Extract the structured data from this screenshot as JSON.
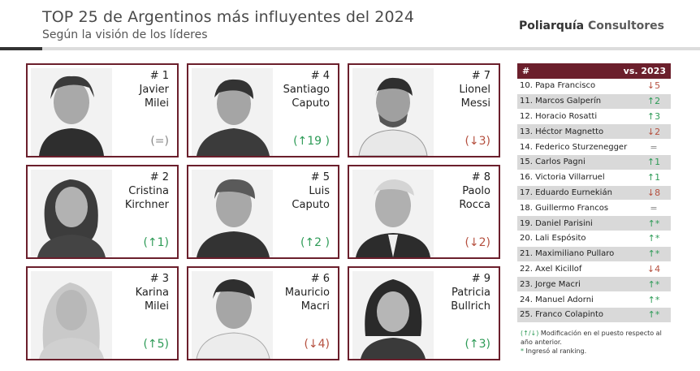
{
  "header": {
    "title": "TOP 25 de Argentinos más influyentes del 2024",
    "subtitle": "Según la visión de los líderes",
    "brand_main": "Poliarquía",
    "brand_sub": "Consultores"
  },
  "cards": [
    {
      "rank": "# 1",
      "first": "Javier",
      "last": "Milei",
      "change": "(=)",
      "trend": "eq"
    },
    {
      "rank": "# 4",
      "first": "Santiago",
      "last": "Caputo",
      "change": "(↑19 )",
      "trend": "up"
    },
    {
      "rank": "# 7",
      "first": "Lionel",
      "last": "Messi",
      "change": "(↓3)",
      "trend": "down"
    },
    {
      "rank": "# 2",
      "first": "Cristina",
      "last": "Kirchner",
      "change": "(↑1)",
      "trend": "up"
    },
    {
      "rank": "# 5",
      "first": "Luis",
      "last": "Caputo",
      "change": "(↑2 )",
      "trend": "up"
    },
    {
      "rank": "# 8",
      "first": "Paolo",
      "last": "Rocca",
      "change": "(↓2)",
      "trend": "down"
    },
    {
      "rank": "# 3",
      "first": "Karina",
      "last": "Milei",
      "change": "(↑5)",
      "trend": "up"
    },
    {
      "rank": "# 6",
      "first": "Mauricio",
      "last": "Macri",
      "change": "(↓4)",
      "trend": "down"
    },
    {
      "rank": "# 9",
      "first": "Patricia",
      "last": "Bullrich",
      "change": "(↑3)",
      "trend": "up"
    }
  ],
  "table": {
    "col1": "#",
    "col2": "vs. 2023",
    "rows": [
      {
        "label": "10. Papa Francisco",
        "change": "↓5",
        "trend": "down"
      },
      {
        "label": "11. Marcos Galperín",
        "change": "↑2",
        "trend": "up"
      },
      {
        "label": "12. Horacio Rosatti",
        "change": "↑3",
        "trend": "up"
      },
      {
        "label": "13. Héctor Magnetto",
        "change": "↓2",
        "trend": "down"
      },
      {
        "label": "14. Federico Sturzenegger",
        "change": "=",
        "trend": "eq"
      },
      {
        "label": "15. Carlos Pagni",
        "change": "↑1",
        "trend": "up"
      },
      {
        "label": "16. Victoria Villarruel",
        "change": "↑1",
        "trend": "up"
      },
      {
        "label": "17. Eduardo Eurnekián",
        "change": "↓8",
        "trend": "down"
      },
      {
        "label": "18. Guillermo Francos",
        "change": "=",
        "trend": "eq"
      },
      {
        "label": "19. Daniel Parisini",
        "change": "↑*",
        "trend": "up"
      },
      {
        "label": "20. Lali Espósito",
        "change": "↑*",
        "trend": "up"
      },
      {
        "label": "21. Maximiliano Pullaro",
        "change": "↑*",
        "trend": "up"
      },
      {
        "label": "22. Axel Kicillof",
        "change": "↓4",
        "trend": "down"
      },
      {
        "label": "23. Jorge Macri",
        "change": "↑*",
        "trend": "up"
      },
      {
        "label": "24. Manuel Adorni",
        "change": "↑*",
        "trend": "up"
      },
      {
        "label": "25. Franco Colapinto",
        "change": "↑*",
        "trend": "up"
      }
    ]
  },
  "footnote": {
    "arrows": "(↑/↓)",
    "text1": "Modificación en el puesto respecto al año anterior.",
    "star": "*",
    "text2": "Ingresó al ranking."
  },
  "colors": {
    "accent": "#6b1f2c",
    "up": "#2e9b57",
    "down": "#b5503f"
  }
}
